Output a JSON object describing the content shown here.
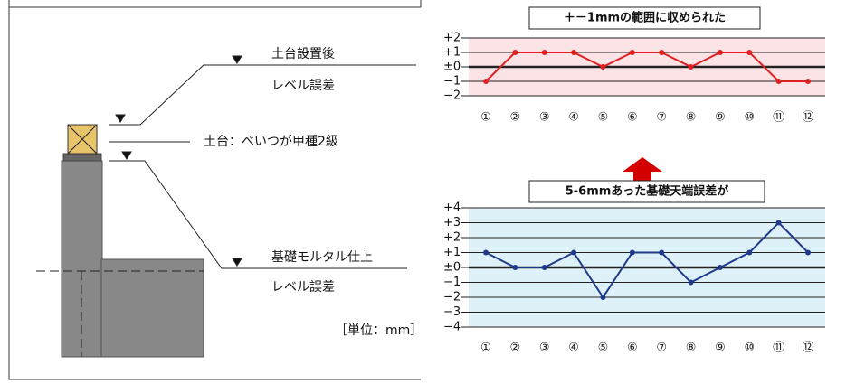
{
  "chart_data": [
    {
      "type": "line",
      "title": "＋－1mmの範囲に収められた",
      "categories": [
        "①",
        "②",
        "③",
        "④",
        "⑤",
        "⑥",
        "⑦",
        "⑧",
        "⑨",
        "⑩",
        "⑪",
        "⑫"
      ],
      "values": [
        -1,
        1,
        1,
        1,
        0,
        1,
        1,
        0,
        1,
        1,
        -1,
        -1
      ],
      "color": "#e02020",
      "background": "#fbe3e6",
      "ylim": [
        -2,
        2
      ],
      "yticks": [
        {
          "value": 2,
          "label": "+2"
        },
        {
          "value": 1,
          "label": "+1"
        },
        {
          "value": 0,
          "label": "±0"
        },
        {
          "value": -1,
          "label": "−1"
        },
        {
          "value": -2,
          "label": "−2"
        }
      ],
      "grid": true
    },
    {
      "type": "line",
      "title": "5-6mmあった基礎天端誤差が",
      "categories": [
        "①",
        "②",
        "③",
        "④",
        "⑤",
        "⑥",
        "⑦",
        "⑧",
        "⑨",
        "⑩",
        "⑪",
        "⑫"
      ],
      "values": [
        1,
        0,
        0,
        1,
        -2,
        1,
        1,
        -1,
        0,
        1,
        3,
        1
      ],
      "color": "#1f3a8a",
      "background": "#dff1f8",
      "ylim": [
        -4,
        4
      ],
      "yticks": [
        {
          "value": 4,
          "label": "+4"
        },
        {
          "value": 3,
          "label": "+3"
        },
        {
          "value": 2,
          "label": "+2"
        },
        {
          "value": 1,
          "label": "+1"
        },
        {
          "value": 0,
          "label": "±0"
        },
        {
          "value": -1,
          "label": "−1"
        },
        {
          "value": -2,
          "label": "−2"
        },
        {
          "value": -3,
          "label": "−3"
        },
        {
          "value": -4,
          "label": "−4"
        }
      ],
      "grid": true
    }
  ],
  "diagram": {
    "labels": [
      "土台設置後",
      "レベル誤差",
      "土台：べいつが甲種2級",
      "基礎モルタル仕上",
      "レベル誤差",
      "［単位：mm］"
    ]
  }
}
